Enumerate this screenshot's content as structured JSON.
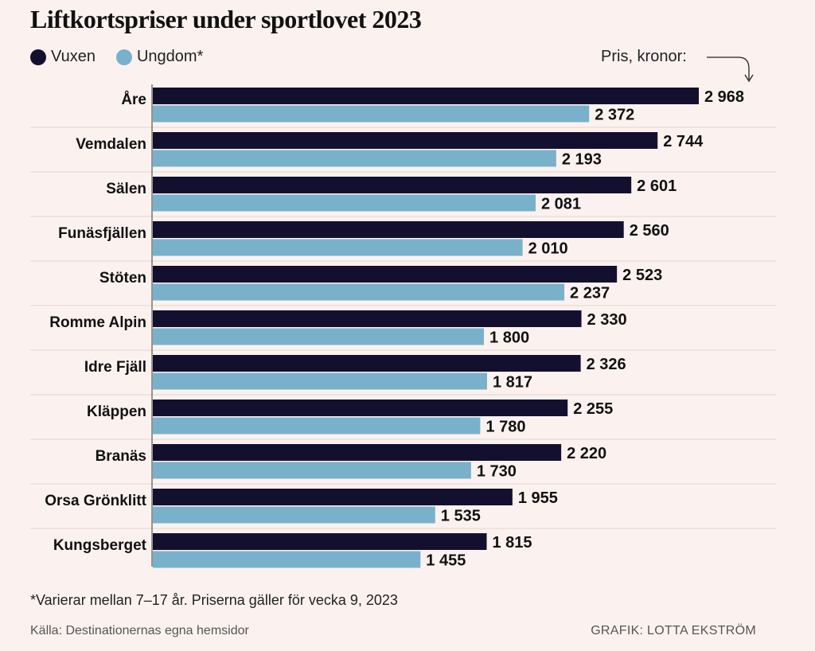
{
  "chart_data": {
    "type": "bar",
    "orientation": "horizontal",
    "title": "Liftkortspriser under sportlovet 2023",
    "unit_label": "Pris, kronor:",
    "categories": [
      "Åre",
      "Vemdalen",
      "Sälen",
      "Funäsfjällen",
      "Stöten",
      "Romme Alpin",
      "Idre Fjäll",
      "Kläppen",
      "Branäs",
      "Orsa Grönklitt",
      "Kungsberget"
    ],
    "series": [
      {
        "name": "Vuxen",
        "color": "#13102f",
        "values": [
          2968,
          2744,
          2601,
          2560,
          2523,
          2330,
          2326,
          2255,
          2220,
          1955,
          1815
        ],
        "labels": [
          "2 968",
          "2 744",
          "2 601",
          "2 560",
          "2 523",
          "2 330",
          "2 326",
          "2 255",
          "2 220",
          "1 955",
          "1 815"
        ]
      },
      {
        "name": "Ungdom*",
        "color": "#7ab1ca",
        "values": [
          2372,
          2193,
          2081,
          2010,
          2237,
          1800,
          1817,
          1780,
          1730,
          1535,
          1455
        ],
        "labels": [
          "2 372",
          "2 193",
          "2 081",
          "2 010",
          "2 237",
          "1 800",
          "1 817",
          "1 780",
          "1 730",
          "1 535",
          "1 455"
        ]
      }
    ],
    "xlim": [
      0,
      3000
    ],
    "legend": "top-left",
    "grid": false
  },
  "footnote": "*Varierar mellan 7–17 år. Priserna gäller för vecka 9, 2023",
  "source": "Källa: Destinationernas egna hemsidor",
  "credit": "GRAFIK: LOTTA EKSTRÖM"
}
